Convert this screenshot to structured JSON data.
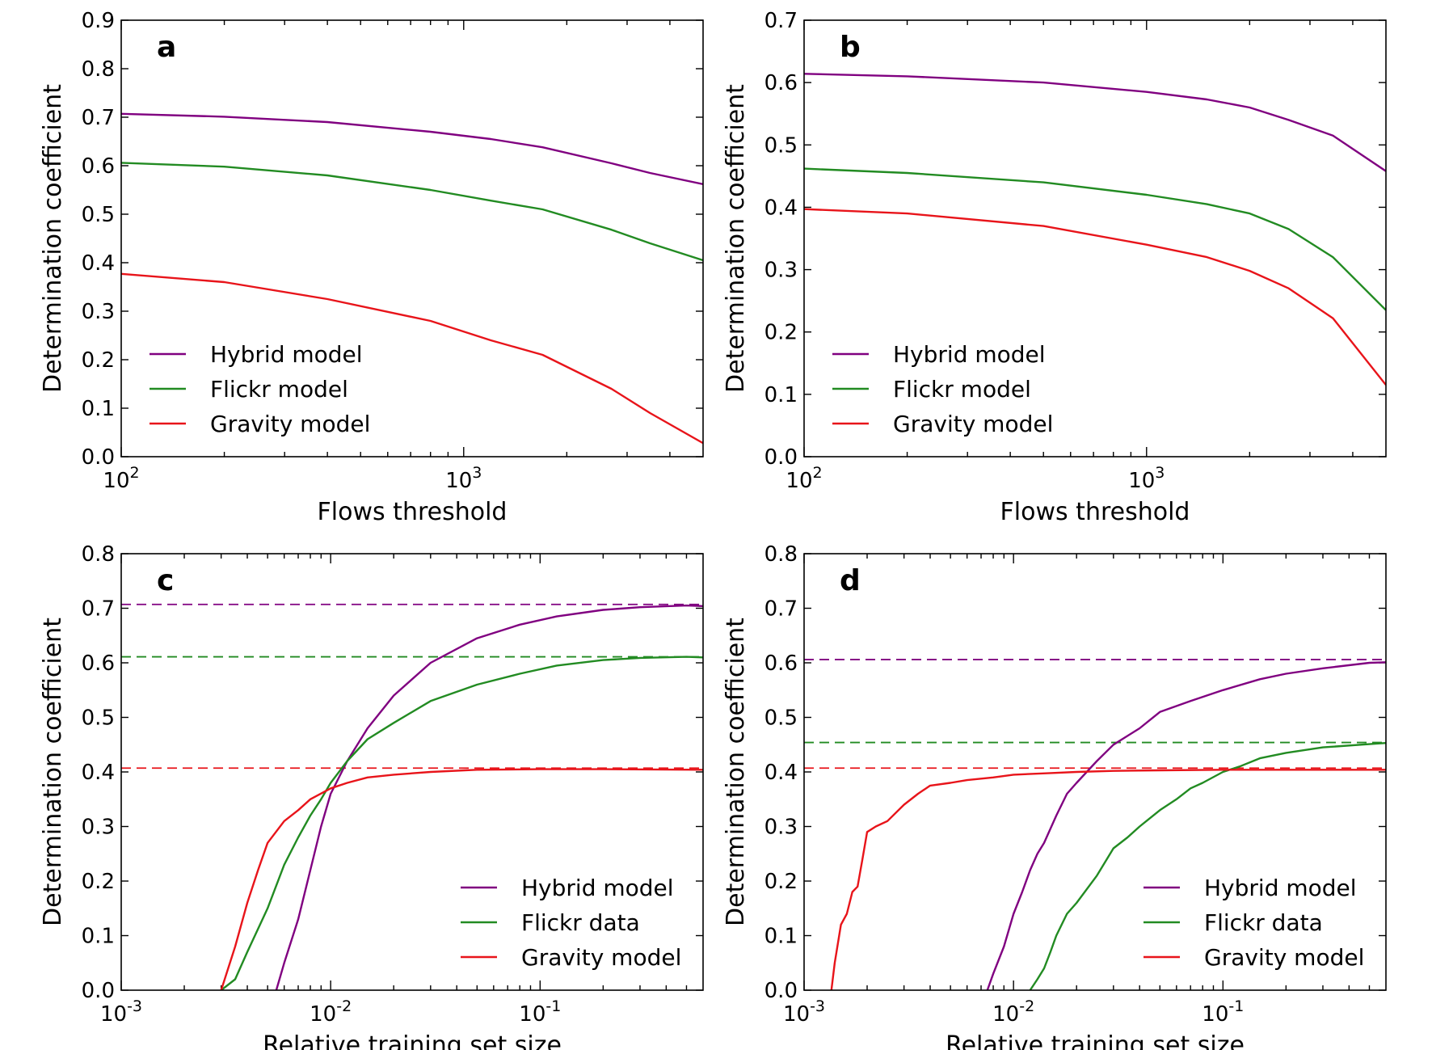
{
  "colors": {
    "hybrid": "#800080",
    "flickr": "#228B22",
    "gravity": "#e8141a"
  },
  "chart_data": [
    {
      "panel": "a",
      "type": "line",
      "xscale": "log",
      "xlabel": "Flows threshold",
      "ylabel": "Determination coefficient",
      "xlim": [
        100,
        5000
      ],
      "ylim": [
        0,
        0.9
      ],
      "yticks": [
        "0.0",
        "0.1",
        "0.2",
        "0.3",
        "0.4",
        "0.5",
        "0.6",
        "0.7",
        "0.8",
        "0.9"
      ],
      "xticks": [
        {
          "value": 100,
          "base": "10",
          "exp": "2"
        },
        {
          "value": 1000,
          "base": "10",
          "exp": "3"
        }
      ],
      "legend_position": "lower-left",
      "series": [
        {
          "name": "Hybrid model",
          "color_key": "hybrid",
          "x": [
            100,
            200,
            400,
            800,
            1200,
            1700,
            2700,
            3500,
            5000
          ],
          "values": [
            0.707,
            0.701,
            0.69,
            0.67,
            0.655,
            0.638,
            0.605,
            0.585,
            0.562
          ]
        },
        {
          "name": "Flickr model",
          "color_key": "flickr",
          "x": [
            100,
            200,
            400,
            800,
            1200,
            1700,
            2700,
            3500,
            5000
          ],
          "values": [
            0.606,
            0.598,
            0.58,
            0.55,
            0.528,
            0.51,
            0.468,
            0.44,
            0.405
          ]
        },
        {
          "name": "Gravity model",
          "color_key": "gravity",
          "x": [
            100,
            200,
            400,
            800,
            1200,
            1700,
            2700,
            3500,
            5000
          ],
          "values": [
            0.377,
            0.36,
            0.325,
            0.28,
            0.24,
            0.21,
            0.14,
            0.09,
            0.028
          ]
        }
      ]
    },
    {
      "panel": "b",
      "type": "line",
      "xscale": "log",
      "xlabel": "Flows threshold",
      "ylabel": "Determination coefficient",
      "xlim": [
        100,
        5000
      ],
      "ylim": [
        0,
        0.7
      ],
      "yticks": [
        "0.0",
        "0.1",
        "0.2",
        "0.3",
        "0.4",
        "0.5",
        "0.6",
        "0.7"
      ],
      "xticks": [
        {
          "value": 100,
          "base": "10",
          "exp": "2"
        },
        {
          "value": 1000,
          "base": "10",
          "exp": "3"
        }
      ],
      "legend_position": "lower-left",
      "series": [
        {
          "name": "Hybrid model",
          "color_key": "hybrid",
          "x": [
            100,
            200,
            500,
            1000,
            1500,
            2000,
            2600,
            3500,
            5000
          ],
          "values": [
            0.614,
            0.61,
            0.6,
            0.585,
            0.573,
            0.56,
            0.54,
            0.515,
            0.458
          ]
        },
        {
          "name": "Flickr model",
          "color_key": "flickr",
          "x": [
            100,
            200,
            500,
            1000,
            1500,
            2000,
            2600,
            3500,
            5000
          ],
          "values": [
            0.462,
            0.455,
            0.44,
            0.42,
            0.405,
            0.39,
            0.365,
            0.32,
            0.235
          ]
        },
        {
          "name": "Gravity model",
          "color_key": "gravity",
          "x": [
            100,
            200,
            500,
            1000,
            1500,
            2000,
            2600,
            3500,
            5000
          ],
          "values": [
            0.397,
            0.39,
            0.37,
            0.34,
            0.32,
            0.298,
            0.27,
            0.222,
            0.115
          ]
        }
      ]
    },
    {
      "panel": "c",
      "type": "line",
      "xscale": "log",
      "xlabel": "Relative training set size",
      "ylabel": "Determination coefficient",
      "xlim": [
        0.001,
        0.6
      ],
      "ylim": [
        0,
        0.8
      ],
      "yticks": [
        "0.0",
        "0.1",
        "0.2",
        "0.3",
        "0.4",
        "0.5",
        "0.6",
        "0.7",
        "0.8"
      ],
      "xticks": [
        {
          "value": 0.001,
          "base": "10",
          "exp": "-3"
        },
        {
          "value": 0.01,
          "base": "10",
          "exp": "-2"
        },
        {
          "value": 0.1,
          "base": "10",
          "exp": "-1"
        }
      ],
      "legend_position": "lower-right",
      "reference_lines": [
        {
          "color_key": "hybrid",
          "value": 0.707
        },
        {
          "color_key": "flickr",
          "value": 0.611
        },
        {
          "color_key": "gravity",
          "value": 0.407
        }
      ],
      "series": [
        {
          "name": "Hybrid model",
          "color_key": "hybrid",
          "x": [
            0.0055,
            0.006,
            0.007,
            0.008,
            0.009,
            0.01,
            0.012,
            0.015,
            0.02,
            0.03,
            0.05,
            0.08,
            0.12,
            0.2,
            0.3,
            0.5,
            0.6
          ],
          "values": [
            0.0,
            0.05,
            0.13,
            0.22,
            0.3,
            0.36,
            0.42,
            0.48,
            0.54,
            0.6,
            0.645,
            0.67,
            0.685,
            0.697,
            0.702,
            0.705,
            0.704
          ]
        },
        {
          "name": "Flickr data",
          "color_key": "flickr",
          "x": [
            0.003,
            0.0035,
            0.004,
            0.005,
            0.006,
            0.007,
            0.008,
            0.009,
            0.01,
            0.012,
            0.015,
            0.02,
            0.03,
            0.05,
            0.08,
            0.12,
            0.2,
            0.3,
            0.5,
            0.6
          ],
          "values": [
            0.0,
            0.02,
            0.07,
            0.15,
            0.23,
            0.28,
            0.32,
            0.35,
            0.38,
            0.42,
            0.46,
            0.49,
            0.53,
            0.56,
            0.58,
            0.595,
            0.605,
            0.609,
            0.611,
            0.61
          ]
        },
        {
          "name": "Gravity model",
          "color_key": "gravity",
          "x": [
            0.003,
            0.0035,
            0.004,
            0.0045,
            0.005,
            0.006,
            0.007,
            0.008,
            0.01,
            0.012,
            0.015,
            0.02,
            0.03,
            0.05,
            0.1,
            0.2,
            0.6
          ],
          "values": [
            0.0,
            0.08,
            0.16,
            0.22,
            0.27,
            0.31,
            0.33,
            0.35,
            0.37,
            0.38,
            0.39,
            0.395,
            0.4,
            0.404,
            0.405,
            0.405,
            0.404
          ]
        }
      ]
    },
    {
      "panel": "d",
      "type": "line",
      "xscale": "log",
      "xlabel": "Relative training set size",
      "ylabel": "Determination coefficient",
      "xlim": [
        0.001,
        0.6
      ],
      "ylim": [
        0,
        0.8
      ],
      "yticks": [
        "0.0",
        "0.1",
        "0.2",
        "0.3",
        "0.4",
        "0.5",
        "0.6",
        "0.7",
        "0.8"
      ],
      "xticks": [
        {
          "value": 0.001,
          "base": "10",
          "exp": "-3"
        },
        {
          "value": 0.01,
          "base": "10",
          "exp": "-2"
        },
        {
          "value": 0.1,
          "base": "10",
          "exp": "-1"
        }
      ],
      "legend_position": "lower-right",
      "reference_lines": [
        {
          "color_key": "hybrid",
          "value": 0.606
        },
        {
          "color_key": "flickr",
          "value": 0.454
        },
        {
          "color_key": "gravity",
          "value": 0.407
        }
      ],
      "series": [
        {
          "name": "Hybrid model",
          "color_key": "hybrid",
          "x": [
            0.0075,
            0.008,
            0.009,
            0.01,
            0.011,
            0.012,
            0.013,
            0.014,
            0.016,
            0.018,
            0.02,
            0.025,
            0.03,
            0.04,
            0.05,
            0.07,
            0.1,
            0.15,
            0.2,
            0.3,
            0.5,
            0.6
          ],
          "values": [
            0.0,
            0.03,
            0.08,
            0.14,
            0.18,
            0.22,
            0.25,
            0.27,
            0.32,
            0.36,
            0.38,
            0.42,
            0.45,
            0.48,
            0.51,
            0.53,
            0.55,
            0.57,
            0.58,
            0.59,
            0.6,
            0.601
          ]
        },
        {
          "name": "Flickr data",
          "color_key": "flickr",
          "x": [
            0.012,
            0.013,
            0.014,
            0.015,
            0.016,
            0.018,
            0.02,
            0.025,
            0.03,
            0.035,
            0.04,
            0.05,
            0.06,
            0.07,
            0.08,
            0.1,
            0.12,
            0.15,
            0.2,
            0.3,
            0.5,
            0.6
          ],
          "values": [
            0.0,
            0.02,
            0.04,
            0.07,
            0.1,
            0.14,
            0.16,
            0.21,
            0.26,
            0.28,
            0.3,
            0.33,
            0.35,
            0.37,
            0.38,
            0.4,
            0.41,
            0.425,
            0.435,
            0.445,
            0.451,
            0.453
          ]
        },
        {
          "name": "Gravity model",
          "color_key": "gravity",
          "x": [
            0.00135,
            0.0014,
            0.0015,
            0.0016,
            0.0017,
            0.0018,
            0.0019,
            0.002,
            0.0022,
            0.0025,
            0.003,
            0.0035,
            0.004,
            0.005,
            0.006,
            0.008,
            0.01,
            0.015,
            0.02,
            0.03,
            0.05,
            0.1,
            0.6
          ],
          "values": [
            0.0,
            0.05,
            0.12,
            0.14,
            0.18,
            0.19,
            0.24,
            0.29,
            0.3,
            0.31,
            0.34,
            0.36,
            0.375,
            0.38,
            0.385,
            0.39,
            0.395,
            0.398,
            0.4,
            0.402,
            0.403,
            0.404,
            0.404
          ]
        }
      ]
    }
  ]
}
